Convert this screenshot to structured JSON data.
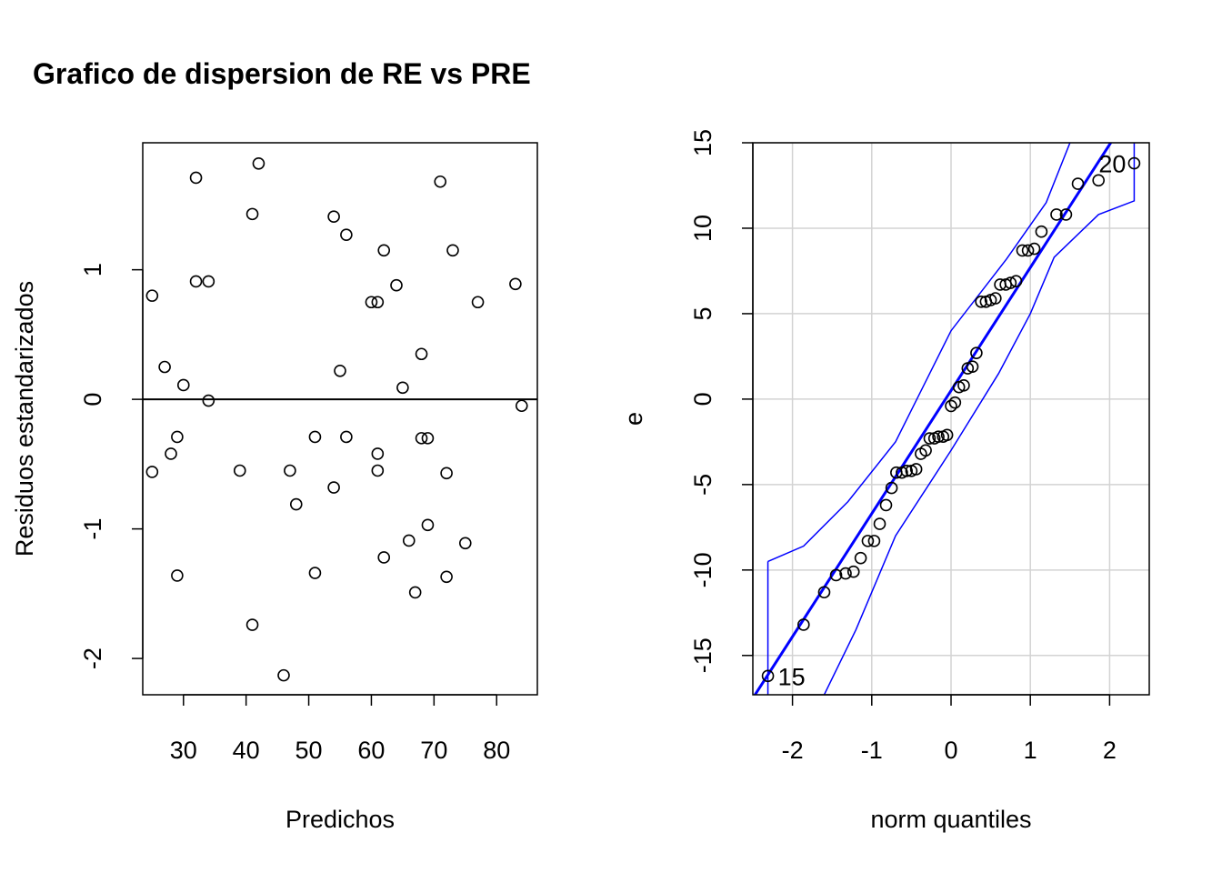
{
  "chart_data": [
    {
      "type": "scatter",
      "title": "Grafico de dispersion de RE vs PRE",
      "xlabel": "Predichos",
      "ylabel": "Residuos estandarizados",
      "xlim": [
        23.5,
        86.5
      ],
      "ylim": [
        -2.28,
        1.98
      ],
      "xticks": [
        30,
        40,
        50,
        60,
        70,
        80
      ],
      "yticks": [
        -2,
        -1,
        0,
        1
      ],
      "hline": 0,
      "points": [
        [
          25,
          0.8
        ],
        [
          25,
          -0.56
        ],
        [
          27,
          0.25
        ],
        [
          28,
          -0.42
        ],
        [
          29,
          -0.29
        ],
        [
          29,
          -1.36
        ],
        [
          30,
          0.11
        ],
        [
          32,
          1.71
        ],
        [
          32,
          0.91
        ],
        [
          34,
          0.91
        ],
        [
          34,
          -0.01
        ],
        [
          39,
          -0.55
        ],
        [
          41,
          1.43
        ],
        [
          41,
          -1.74
        ],
        [
          42,
          1.82
        ],
        [
          46,
          -2.13
        ],
        [
          47,
          -0.55
        ],
        [
          48,
          -0.81
        ],
        [
          51,
          -0.29
        ],
        [
          51,
          -1.34
        ],
        [
          54,
          1.41
        ],
        [
          54,
          -0.68
        ],
        [
          55,
          0.22
        ],
        [
          56,
          1.27
        ],
        [
          56,
          -0.29
        ],
        [
          60,
          0.75
        ],
        [
          61,
          0.75
        ],
        [
          61,
          -0.42
        ],
        [
          61,
          -0.55
        ],
        [
          62,
          1.15
        ],
        [
          62,
          -1.22
        ],
        [
          64,
          0.88
        ],
        [
          65,
          0.09
        ],
        [
          66,
          -1.09
        ],
        [
          67,
          -1.49
        ],
        [
          68,
          0.35
        ],
        [
          68,
          -0.3
        ],
        [
          69,
          -0.3
        ],
        [
          69,
          -0.97
        ],
        [
          71,
          1.68
        ],
        [
          72,
          -0.57
        ],
        [
          72,
          -1.37
        ],
        [
          73,
          1.15
        ],
        [
          75,
          -1.11
        ],
        [
          77,
          0.75
        ],
        [
          83,
          0.89
        ],
        [
          84,
          -0.05
        ]
      ]
    },
    {
      "type": "scatter",
      "title": "",
      "xlabel": "norm quantiles",
      "ylabel": "e",
      "xlim": [
        -2.5,
        2.5
      ],
      "ylim": [
        -17.3,
        15
      ],
      "xticks": [
        -2,
        -1,
        0,
        1,
        2
      ],
      "yticks": [
        -15,
        -10,
        -5,
        0,
        5,
        10,
        15
      ],
      "grid": true,
      "reference_line": {
        "intercept": 0.5,
        "slope": 7.2
      },
      "envelope_upper": [
        [
          -2.31,
          -9.5
        ],
        [
          -1.86,
          -8.6
        ],
        [
          -1.3,
          -6.0
        ],
        [
          -0.7,
          -2.5
        ],
        [
          0,
          4.0
        ],
        [
          0.7,
          8.2
        ],
        [
          1.2,
          11.5
        ],
        [
          1.5,
          15.0
        ]
      ],
      "envelope_lower": [
        [
          -1.6,
          -17.3
        ],
        [
          -1.2,
          -13.5
        ],
        [
          -0.7,
          -8.0
        ],
        [
          0,
          -3.0
        ],
        [
          0.6,
          1.5
        ],
        [
          1.0,
          5.0
        ],
        [
          1.3,
          8.3
        ],
        [
          1.86,
          10.8
        ],
        [
          2.31,
          11.6
        ],
        [
          2.31,
          15.0
        ]
      ],
      "point_labels": [
        {
          "label": "20",
          "x": 2.31,
          "y": 13.8
        },
        {
          "label": "15",
          "x": -2.31,
          "y": -16.2
        }
      ],
      "points": [
        [
          -2.31,
          -16.2
        ],
        [
          -1.86,
          -13.2
        ],
        [
          -1.6,
          -11.3
        ],
        [
          -1.45,
          -10.3
        ],
        [
          -1.33,
          -10.2
        ],
        [
          -1.23,
          -10.1
        ],
        [
          -1.14,
          -9.3
        ],
        [
          -1.05,
          -8.3
        ],
        [
          -0.97,
          -8.3
        ],
        [
          -0.9,
          -7.3
        ],
        [
          -0.82,
          -6.2
        ],
        [
          -0.75,
          -5.2
        ],
        [
          -0.69,
          -4.3
        ],
        [
          -0.62,
          -4.3
        ],
        [
          -0.56,
          -4.2
        ],
        [
          -0.5,
          -4.2
        ],
        [
          -0.44,
          -4.1
        ],
        [
          -0.38,
          -3.2
        ],
        [
          -0.32,
          -3.0
        ],
        [
          -0.27,
          -2.3
        ],
        [
          -0.21,
          -2.3
        ],
        [
          -0.16,
          -2.2
        ],
        [
          -0.1,
          -2.2
        ],
        [
          -0.05,
          -2.1
        ],
        [
          0.0,
          -0.4
        ],
        [
          0.05,
          -0.2
        ],
        [
          0.1,
          0.7
        ],
        [
          0.16,
          0.8
        ],
        [
          0.21,
          1.8
        ],
        [
          0.27,
          1.9
        ],
        [
          0.32,
          2.7
        ],
        [
          0.38,
          5.7
        ],
        [
          0.44,
          5.7
        ],
        [
          0.5,
          5.8
        ],
        [
          0.56,
          5.9
        ],
        [
          0.62,
          6.7
        ],
        [
          0.69,
          6.7
        ],
        [
          0.75,
          6.8
        ],
        [
          0.82,
          6.9
        ],
        [
          0.9,
          8.7
        ],
        [
          0.97,
          8.7
        ],
        [
          1.05,
          8.8
        ],
        [
          1.14,
          9.8
        ],
        [
          1.33,
          10.8
        ],
        [
          1.45,
          10.8
        ],
        [
          1.6,
          12.6
        ],
        [
          1.86,
          12.8
        ],
        [
          2.31,
          13.8
        ]
      ]
    }
  ]
}
